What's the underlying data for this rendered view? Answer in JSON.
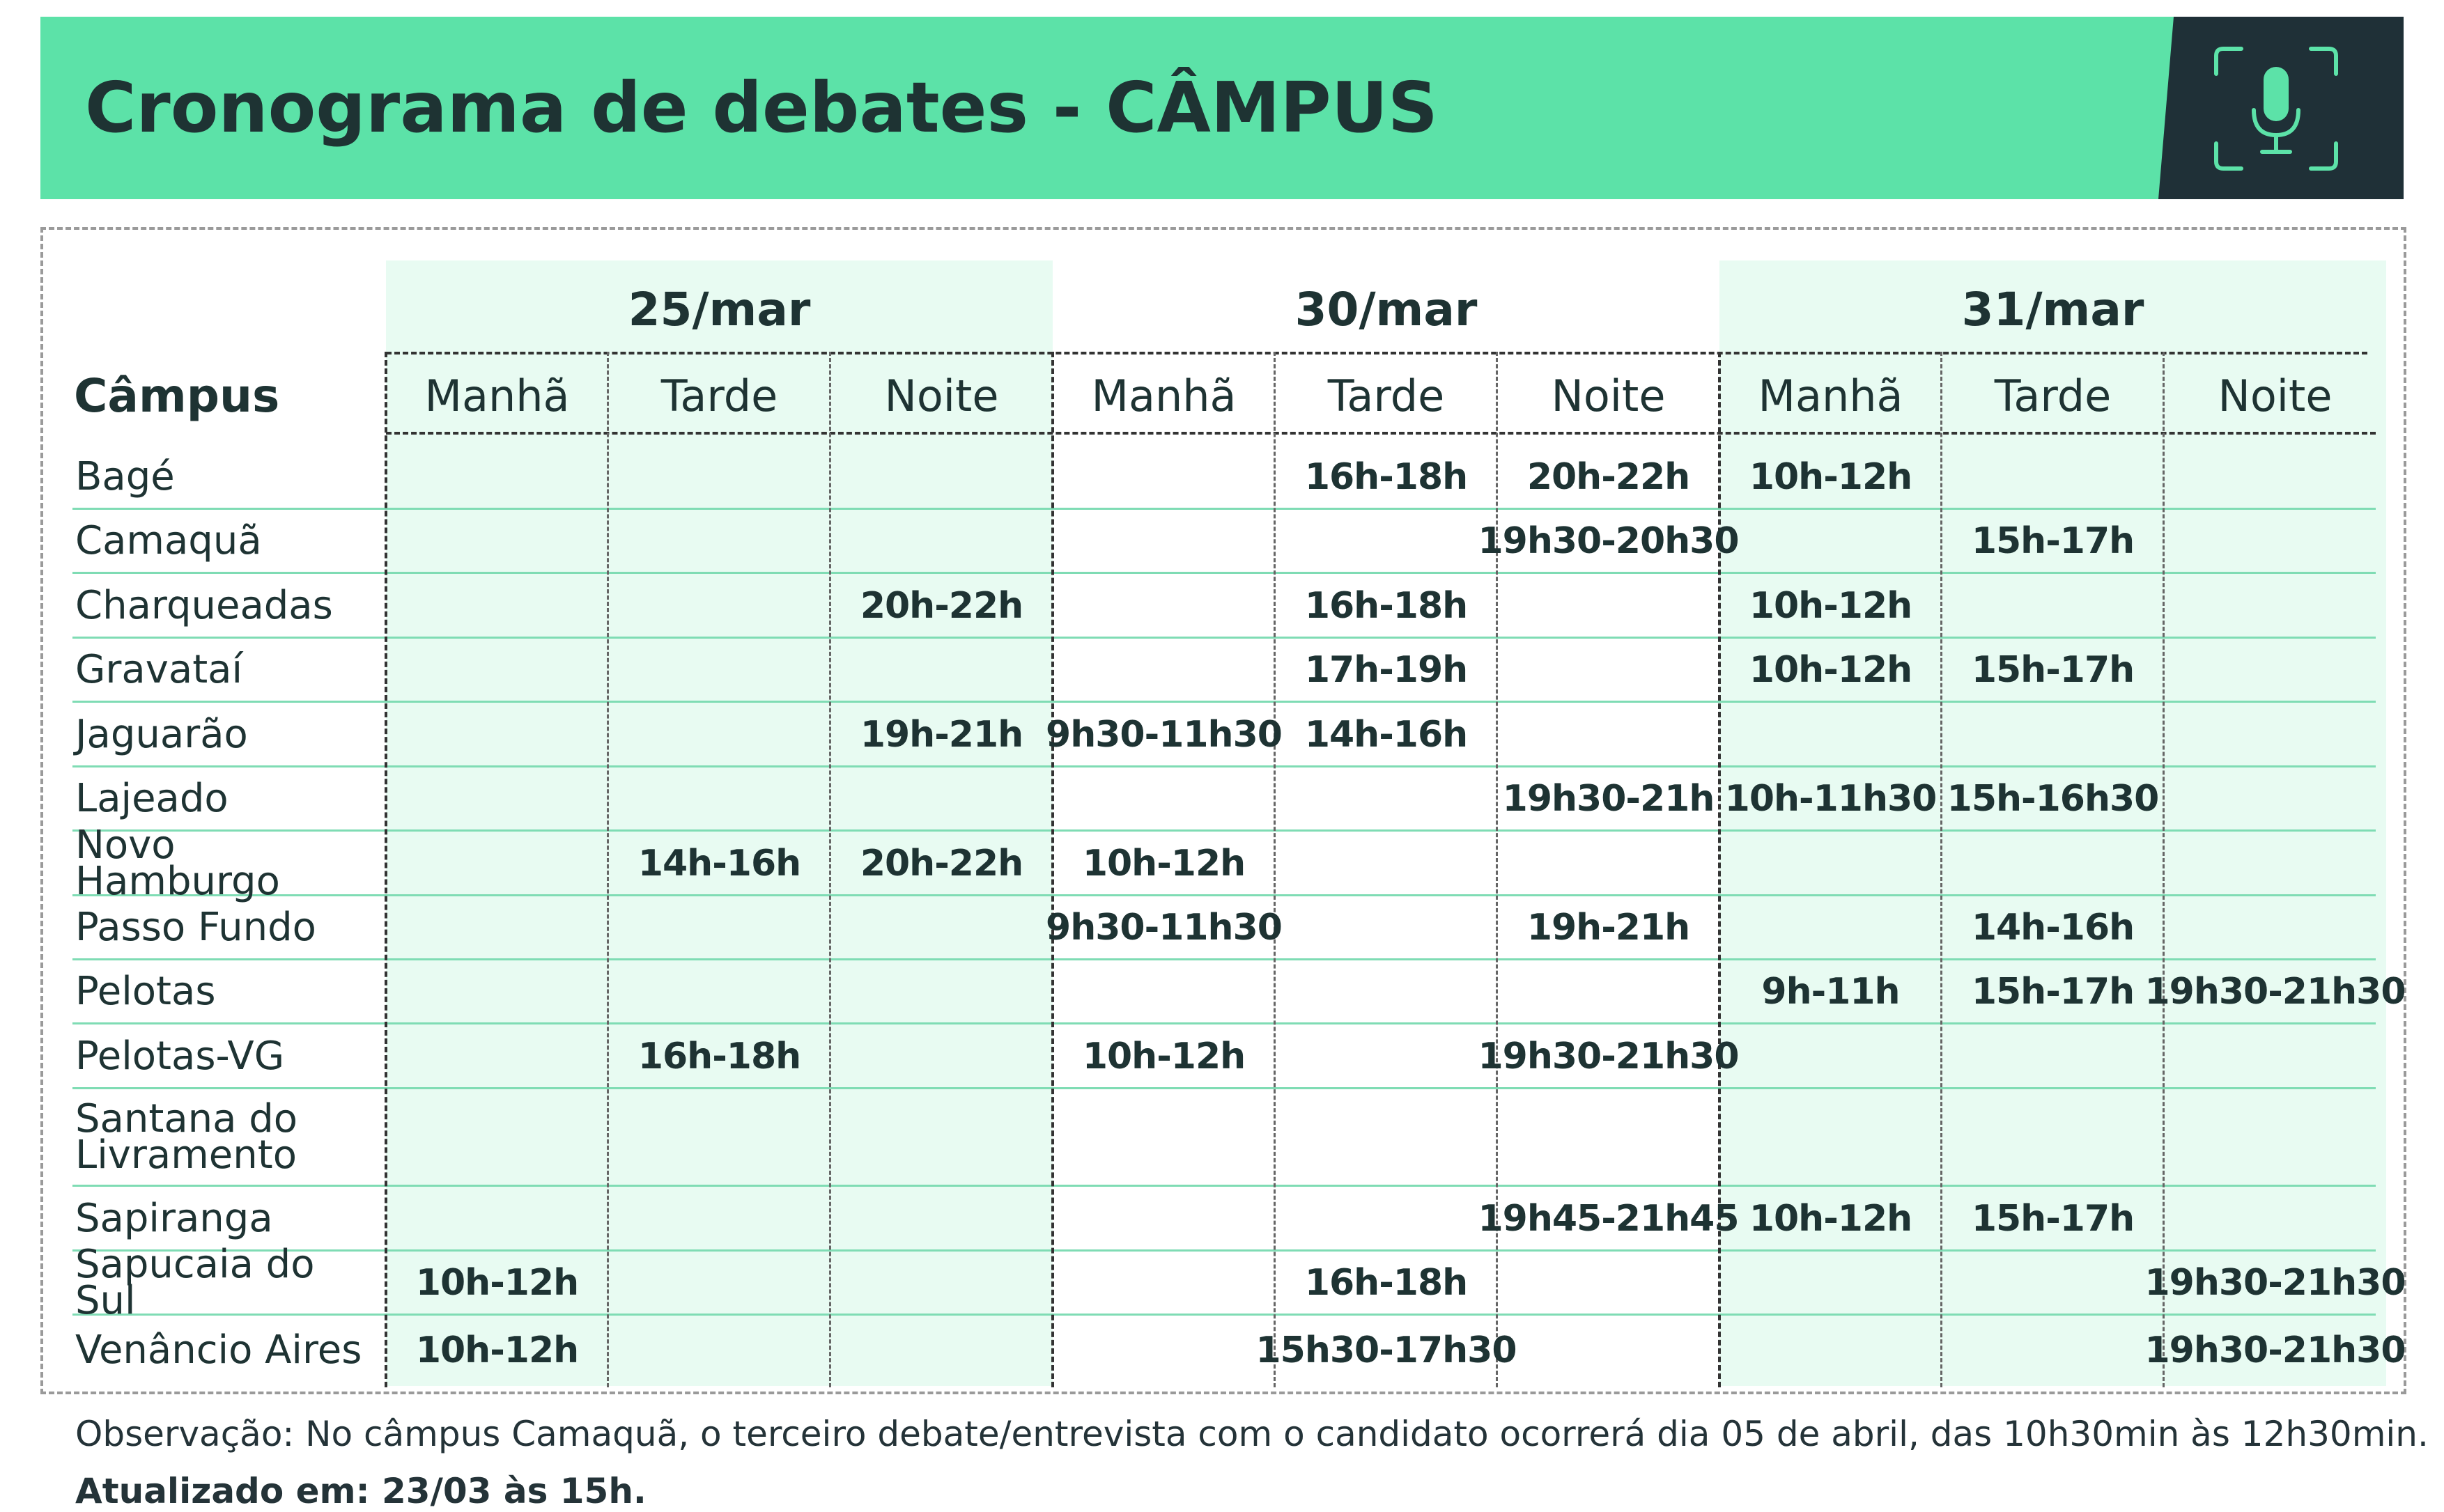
{
  "title": "Cronograma de debates - CÂMPUS",
  "table": {
    "campus_header": "Câmpus",
    "dates": [
      "25/mar",
      "30/mar",
      "31/mar"
    ],
    "periods": [
      "Manhã",
      "Tarde",
      "Noite"
    ],
    "rows": [
      {
        "campus": "Bagé",
        "times": [
          "",
          "",
          "",
          "",
          "16h-18h",
          "20h-22h",
          "10h-12h",
          "",
          ""
        ]
      },
      {
        "campus": "Camaquã",
        "times": [
          "",
          "",
          "",
          "",
          "",
          "19h30-20h30",
          "",
          "15h-17h",
          ""
        ]
      },
      {
        "campus": "Charqueadas",
        "times": [
          "",
          "",
          "20h-22h",
          "",
          "16h-18h",
          "",
          "10h-12h",
          "",
          ""
        ]
      },
      {
        "campus": "Gravataí",
        "times": [
          "",
          "",
          "",
          "",
          "17h-19h",
          "",
          "10h-12h",
          "15h-17h",
          ""
        ]
      },
      {
        "campus": "Jaguarão",
        "times": [
          "",
          "",
          "19h-21h",
          "9h30-11h30",
          "14h-16h",
          "",
          "",
          "",
          ""
        ]
      },
      {
        "campus": "Lajeado",
        "times": [
          "",
          "",
          "",
          "",
          "",
          "19h30-21h",
          "10h-11h30",
          "15h-16h30",
          ""
        ]
      },
      {
        "campus": "Novo Hamburgo",
        "times": [
          "",
          "14h-16h",
          "20h-22h",
          "10h-12h",
          "",
          "",
          "",
          "",
          ""
        ]
      },
      {
        "campus": "Passo Fundo",
        "times": [
          "",
          "",
          "",
          "9h30-11h30",
          "",
          "19h-21h",
          "",
          "14h-16h",
          ""
        ]
      },
      {
        "campus": "Pelotas",
        "times": [
          "",
          "",
          "",
          "",
          "",
          "",
          "9h-11h",
          "15h-17h",
          "19h30-21h30"
        ]
      },
      {
        "campus": "Pelotas-VG",
        "times": [
          "",
          "16h-18h",
          "",
          "10h-12h",
          "",
          "19h30-21h30",
          "",
          "",
          ""
        ]
      },
      {
        "campus": "Santana do Livramento",
        "times": [
          "",
          "",
          "",
          "",
          "",
          "",
          "",
          "",
          ""
        ]
      },
      {
        "campus": "Sapiranga",
        "times": [
          "",
          "",
          "",
          "",
          "",
          "19h45-21h45",
          "10h-12h",
          "15h-17h",
          ""
        ]
      },
      {
        "campus": "Sapucaia do Sul",
        "times": [
          "10h-12h",
          "",
          "",
          "",
          "16h-18h",
          "",
          "",
          "",
          "19h30-21h30"
        ]
      },
      {
        "campus": "Venâncio Aires",
        "times": [
          "10h-12h",
          "",
          "",
          "",
          "15h30-17h30",
          "",
          "",
          "",
          "19h30-21h30"
        ]
      }
    ]
  },
  "note": "Observação: No câmpus Camaquã, o terceiro debate/entrevista com o candidato ocorrerá dia 05 de abril, das 10h30min às 12h30min.",
  "updated": "Atualizado em: 23/03 às 15h.",
  "colors": {
    "accent": "#5ce2a8",
    "dark": "#1f3037",
    "shade": "#e8fbf2",
    "divider": "#7fdcb4"
  },
  "icons": {
    "banner": "microphone-icon"
  }
}
